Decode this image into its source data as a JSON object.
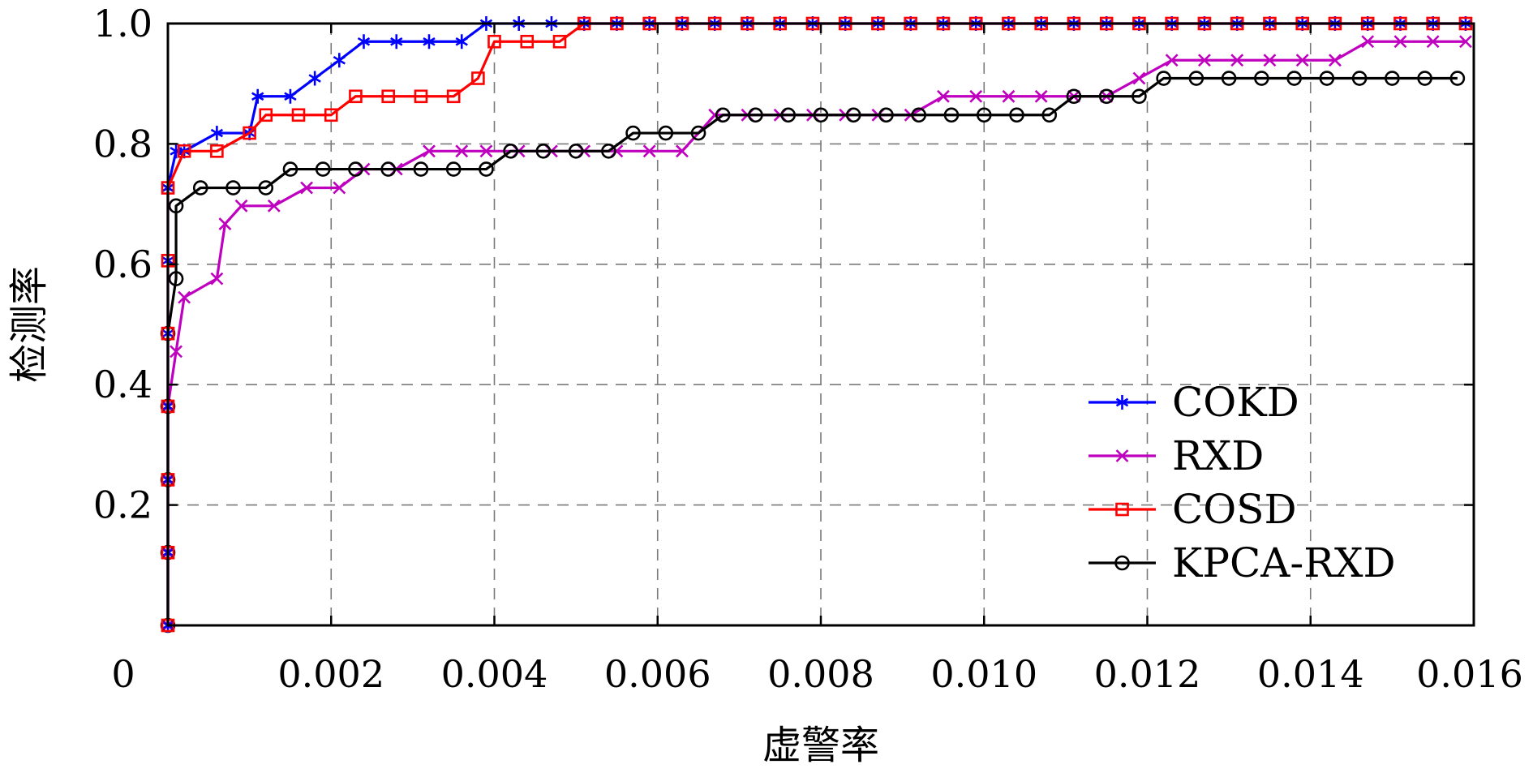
{
  "chart_data": {
    "type": "line",
    "title": "",
    "xlabel": "虚警率",
    "ylabel": "检测率",
    "xlim": [
      0,
      0.016
    ],
    "ylim": [
      0,
      1.0
    ],
    "grid": true,
    "legend_position": "bottom-right",
    "x_ticks": [
      {
        "v": 0,
        "label": "0"
      },
      {
        "v": 0.002,
        "label": "0.002"
      },
      {
        "v": 0.004,
        "label": "0.004"
      },
      {
        "v": 0.006,
        "label": "0.006"
      },
      {
        "v": 0.008,
        "label": "0.008"
      },
      {
        "v": 0.01,
        "label": "0.010"
      },
      {
        "v": 0.012,
        "label": "0.012"
      },
      {
        "v": 0.014,
        "label": "0.014"
      },
      {
        "v": 0.016,
        "label": "0.016"
      }
    ],
    "y_ticks": [
      {
        "v": 0.2,
        "label": "0.2"
      },
      {
        "v": 0.4,
        "label": "0.4"
      },
      {
        "v": 0.6,
        "label": "0.6"
      },
      {
        "v": 0.8,
        "label": "0.8"
      },
      {
        "v": 1.0,
        "label": "1.0"
      }
    ],
    "series": [
      {
        "name": "COKD",
        "color": "#0000ff",
        "marker": "asterisk",
        "x": [
          0,
          0,
          0,
          0,
          0,
          0,
          0,
          0,
          0,
          0.0001,
          0.0002,
          0.0006,
          0.001,
          0.0011,
          0.0015,
          0.0018,
          0.0021,
          0.0024,
          0.0028,
          0.0032,
          0.0036,
          0.0039,
          0.0043,
          0.0047,
          0.0051,
          0.0055,
          0.0059,
          0.0063,
          0.0067,
          0.0071,
          0.0075,
          0.0079,
          0.0083,
          0.0087,
          0.0091,
          0.0095,
          0.0099,
          0.0103,
          0.0107,
          0.0111,
          0.0115,
          0.0119,
          0.0123,
          0.0127,
          0.0131,
          0.0135,
          0.0139,
          0.0143,
          0.0147,
          0.0151,
          0.0155,
          0.0159
        ],
        "y": [
          0,
          0.121,
          0.242,
          0.364,
          0.485,
          0.606,
          0.727,
          0.727,
          0.727,
          0.788,
          0.788,
          0.818,
          0.818,
          0.879,
          0.879,
          0.909,
          0.939,
          0.97,
          0.97,
          0.97,
          0.97,
          1.0,
          1.0,
          1.0,
          1.0,
          1.0,
          1.0,
          1.0,
          1.0,
          1.0,
          1.0,
          1.0,
          1.0,
          1.0,
          1.0,
          1.0,
          1.0,
          1.0,
          1.0,
          1.0,
          1.0,
          1.0,
          1.0,
          1.0,
          1.0,
          1.0,
          1.0,
          1.0,
          1.0,
          1.0,
          1.0,
          1.0
        ]
      },
      {
        "name": "RXD",
        "color": "#bf00bf",
        "marker": "x",
        "x": [
          0,
          0,
          0,
          0,
          0,
          0.0001,
          0.0002,
          0.0006,
          0.0007,
          0.0009,
          0.0013,
          0.0017,
          0.0021,
          0.0024,
          0.0028,
          0.0032,
          0.0036,
          0.0039,
          0.0043,
          0.0047,
          0.0051,
          0.0055,
          0.0059,
          0.0063,
          0.0067,
          0.0071,
          0.0075,
          0.0079,
          0.0083,
          0.0087,
          0.0091,
          0.0095,
          0.0099,
          0.0103,
          0.0107,
          0.0111,
          0.0115,
          0.0119,
          0.0123,
          0.0127,
          0.0131,
          0.0135,
          0.0139,
          0.0143,
          0.0147,
          0.0151,
          0.0155,
          0.0159
        ],
        "y": [
          0,
          0.121,
          0.242,
          0.364,
          0.364,
          0.455,
          0.545,
          0.576,
          0.667,
          0.697,
          0.697,
          0.727,
          0.727,
          0.758,
          0.758,
          0.788,
          0.788,
          0.788,
          0.788,
          0.788,
          0.788,
          0.788,
          0.788,
          0.788,
          0.848,
          0.848,
          0.848,
          0.848,
          0.848,
          0.848,
          0.848,
          0.879,
          0.879,
          0.879,
          0.879,
          0.879,
          0.879,
          0.909,
          0.939,
          0.939,
          0.939,
          0.939,
          0.939,
          0.939,
          0.97,
          0.97,
          0.97,
          0.97
        ]
      },
      {
        "name": "COSD",
        "color": "#ff0000",
        "marker": "square",
        "x": [
          0,
          0,
          0,
          0,
          0,
          0,
          0,
          0.0002,
          0.0006,
          0.001,
          0.0012,
          0.0016,
          0.002,
          0.0023,
          0.0027,
          0.0031,
          0.0035,
          0.0038,
          0.004,
          0.0044,
          0.0048,
          0.0051,
          0.0055,
          0.0059,
          0.0063,
          0.0067,
          0.0071,
          0.0075,
          0.0079,
          0.0083,
          0.0087,
          0.0091,
          0.0095,
          0.0099,
          0.0103,
          0.0107,
          0.0111,
          0.0115,
          0.0119,
          0.0123,
          0.0127,
          0.0131,
          0.0135,
          0.0139,
          0.0143,
          0.0147,
          0.0151,
          0.0155,
          0.0159
        ],
        "y": [
          0,
          0.121,
          0.242,
          0.364,
          0.485,
          0.606,
          0.727,
          0.788,
          0.788,
          0.818,
          0.848,
          0.848,
          0.848,
          0.879,
          0.879,
          0.879,
          0.879,
          0.909,
          0.97,
          0.97,
          0.97,
          1.0,
          1.0,
          1.0,
          1.0,
          1.0,
          1.0,
          1.0,
          1.0,
          1.0,
          1.0,
          1.0,
          1.0,
          1.0,
          1.0,
          1.0,
          1.0,
          1.0,
          1.0,
          1.0,
          1.0,
          1.0,
          1.0,
          1.0,
          1.0,
          1.0,
          1.0,
          1.0,
          1.0
        ]
      },
      {
        "name": "KPCA-RXD",
        "color": "#000000",
        "marker": "circle",
        "x": [
          0,
          0,
          0,
          0,
          0,
          0.0001,
          0.0001,
          0.0004,
          0.0008,
          0.0012,
          0.0015,
          0.0019,
          0.0023,
          0.0027,
          0.0031,
          0.0035,
          0.0039,
          0.0042,
          0.0046,
          0.005,
          0.0054,
          0.0057,
          0.0061,
          0.0065,
          0.0068,
          0.0072,
          0.0076,
          0.008,
          0.0084,
          0.0088,
          0.0092,
          0.0096,
          0.01,
          0.0104,
          0.0108,
          0.0111,
          0.0115,
          0.0119,
          0.0122,
          0.0126,
          0.013,
          0.0134,
          0.0138,
          0.0142,
          0.0146,
          0.015,
          0.0154,
          0.0158
        ],
        "y": [
          0,
          0.121,
          0.242,
          0.364,
          0.485,
          0.576,
          0.697,
          0.727,
          0.727,
          0.727,
          0.758,
          0.758,
          0.758,
          0.758,
          0.758,
          0.758,
          0.758,
          0.788,
          0.788,
          0.788,
          0.788,
          0.818,
          0.818,
          0.818,
          0.848,
          0.848,
          0.848,
          0.848,
          0.848,
          0.848,
          0.848,
          0.848,
          0.848,
          0.848,
          0.848,
          0.879,
          0.879,
          0.879,
          0.909,
          0.909,
          0.909,
          0.909,
          0.909,
          0.909,
          0.909,
          0.909,
          0.909,
          0.909
        ]
      }
    ]
  }
}
